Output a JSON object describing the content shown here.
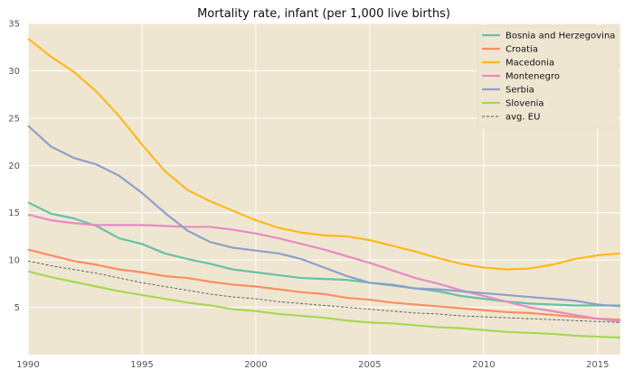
{
  "chart_data": {
    "type": "line",
    "title": "Mortality rate, infant (per 1,000 live births)",
    "xlabel": "",
    "ylabel": "",
    "xlim": [
      1990,
      2016
    ],
    "ylim": [
      0,
      35
    ],
    "grid": true,
    "legend_position": "top-right",
    "background_color": "#efe6d2",
    "x": [
      1990,
      1991,
      1992,
      1993,
      1994,
      1995,
      1996,
      1997,
      1998,
      1999,
      2000,
      2001,
      2002,
      2003,
      2004,
      2005,
      2006,
      2007,
      2008,
      2009,
      2010,
      2011,
      2012,
      2013,
      2014,
      2015,
      2016
    ],
    "x_ticks": [
      1990,
      1995,
      2000,
      2005,
      2010,
      2015
    ],
    "y_ticks": [
      5,
      10,
      15,
      20,
      25,
      30,
      35
    ],
    "series": [
      {
        "name": "Bosnia and Herzegovina",
        "color": "#66c2a5",
        "style": "solid",
        "values": [
          16.1,
          14.9,
          14.4,
          13.6,
          12.3,
          11.7,
          10.7,
          10.1,
          9.6,
          9.0,
          8.7,
          8.4,
          8.1,
          8.0,
          7.9,
          7.6,
          7.3,
          7.0,
          6.7,
          6.2,
          5.9,
          5.6,
          5.4,
          5.3,
          5.2,
          5.2,
          5.2
        ]
      },
      {
        "name": "Croatia",
        "color": "#fc8d62",
        "style": "solid",
        "values": [
          11.1,
          10.5,
          9.9,
          9.5,
          9.0,
          8.7,
          8.3,
          8.1,
          7.7,
          7.4,
          7.2,
          6.9,
          6.6,
          6.4,
          6.0,
          5.8,
          5.5,
          5.3,
          5.1,
          4.9,
          4.7,
          4.5,
          4.4,
          4.2,
          4.0,
          3.8,
          3.7
        ]
      },
      {
        "name": "Macedonia",
        "color": "#ffb81c",
        "style": "solid",
        "values": [
          33.4,
          31.5,
          29.9,
          27.8,
          25.2,
          22.2,
          19.4,
          17.4,
          16.2,
          15.2,
          14.2,
          13.4,
          12.9,
          12.6,
          12.5,
          12.1,
          11.5,
          10.9,
          10.2,
          9.6,
          9.2,
          9.0,
          9.1,
          9.5,
          10.1,
          10.5,
          10.7
        ]
      },
      {
        "name": "Montenegro",
        "color": "#e78ac3",
        "style": "solid",
        "values": [
          14.8,
          14.2,
          13.9,
          13.7,
          13.7,
          13.7,
          13.6,
          13.5,
          13.5,
          13.2,
          12.8,
          12.3,
          11.7,
          11.1,
          10.4,
          9.7,
          8.9,
          8.1,
          7.5,
          6.8,
          6.2,
          5.6,
          5.0,
          4.6,
          4.2,
          3.8,
          3.5
        ]
      },
      {
        "name": "Serbia",
        "color": "#8da0cb",
        "style": "solid",
        "values": [
          24.2,
          22.0,
          20.8,
          20.1,
          18.9,
          17.1,
          15.0,
          13.1,
          11.9,
          11.3,
          11.0,
          10.7,
          10.1,
          9.2,
          8.3,
          7.6,
          7.4,
          7.0,
          6.9,
          6.7,
          6.5,
          6.3,
          6.1,
          5.9,
          5.7,
          5.3,
          5.1
        ]
      },
      {
        "name": "Slovenia",
        "color": "#a6d854",
        "style": "solid",
        "values": [
          8.8,
          8.2,
          7.7,
          7.2,
          6.7,
          6.3,
          5.9,
          5.5,
          5.2,
          4.8,
          4.6,
          4.3,
          4.1,
          3.9,
          3.6,
          3.4,
          3.3,
          3.1,
          2.9,
          2.8,
          2.6,
          2.4,
          2.3,
          2.2,
          2.0,
          1.9,
          1.8
        ]
      },
      {
        "name": "avg. EU",
        "color": "#555555",
        "style": "dashed",
        "values": [
          9.9,
          9.4,
          9.0,
          8.6,
          8.1,
          7.6,
          7.2,
          6.8,
          6.4,
          6.1,
          5.9,
          5.6,
          5.4,
          5.2,
          5.0,
          4.8,
          4.6,
          4.4,
          4.3,
          4.1,
          4.0,
          3.9,
          3.8,
          3.7,
          3.6,
          3.5,
          3.4
        ]
      }
    ]
  }
}
